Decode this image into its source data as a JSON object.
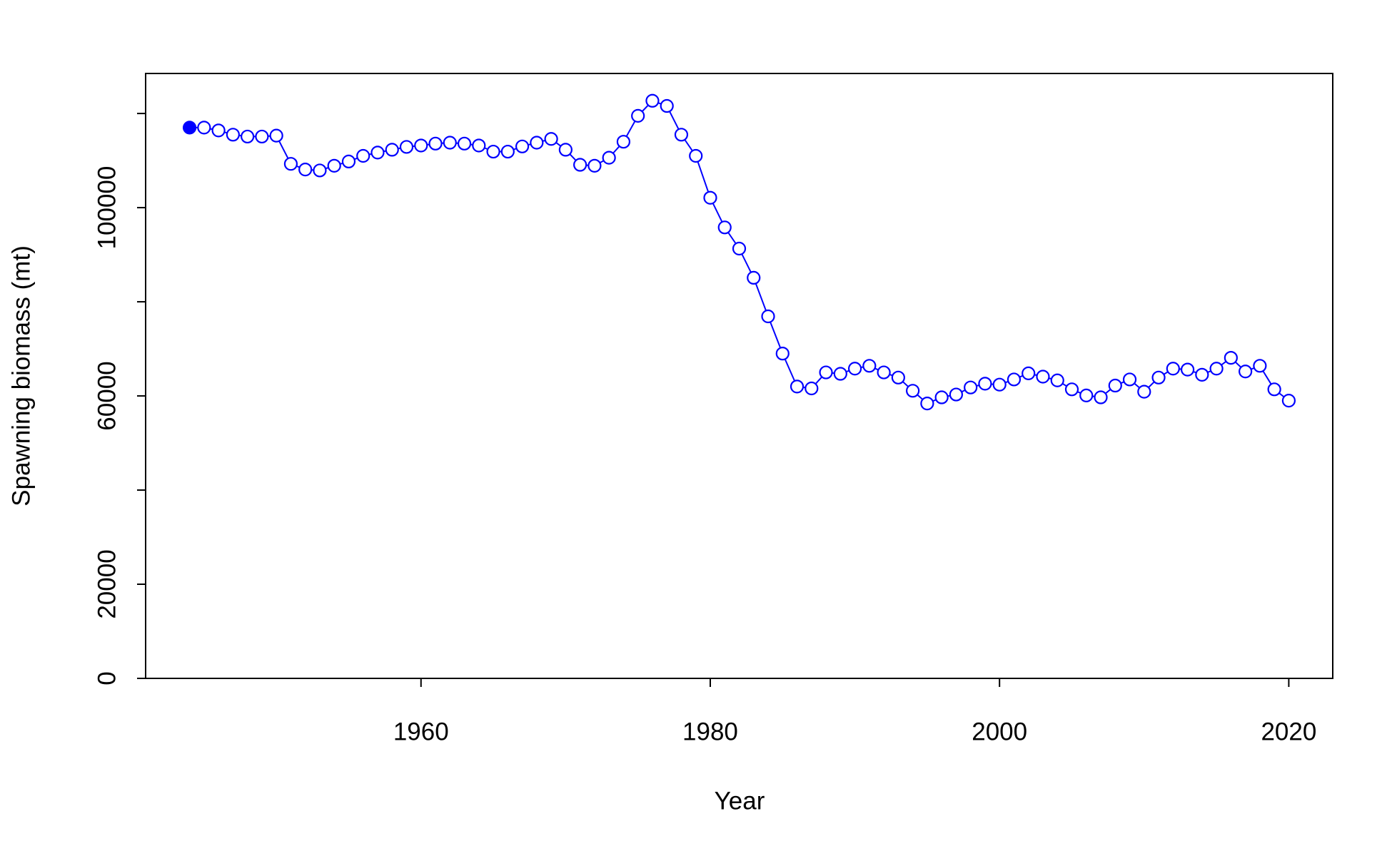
{
  "chart_data": {
    "type": "line",
    "xlabel": "Year",
    "ylabel": "Spawning biomass (mt)",
    "x": [
      1944,
      1945,
      1946,
      1947,
      1948,
      1949,
      1950,
      1951,
      1952,
      1953,
      1954,
      1955,
      1956,
      1957,
      1958,
      1959,
      1960,
      1961,
      1962,
      1963,
      1964,
      1965,
      1966,
      1967,
      1968,
      1969,
      1970,
      1971,
      1972,
      1973,
      1974,
      1975,
      1976,
      1977,
      1978,
      1979,
      1980,
      1981,
      1982,
      1983,
      1984,
      1985,
      1986,
      1987,
      1988,
      1989,
      1990,
      1991,
      1992,
      1993,
      1994,
      1995,
      1996,
      1997,
      1998,
      1999,
      2000,
      2001,
      2002,
      2003,
      2004,
      2005,
      2006,
      2007,
      2008,
      2009,
      2010,
      2011,
      2012,
      2013,
      2014,
      2015,
      2016,
      2017,
      2018,
      2019,
      2020
    ],
    "series": [
      {
        "color": "#0000ff",
        "first_point_filled": true,
        "values": [
          117000,
          117000,
          116400,
          115500,
          115100,
          115100,
          115300,
          109300,
          108100,
          107900,
          108900,
          109800,
          111000,
          111700,
          112300,
          112900,
          113200,
          113600,
          113800,
          113600,
          113200,
          111900,
          111900,
          113000,
          113800,
          114600,
          112300,
          109100,
          108900,
          110600,
          114000,
          119500,
          122700,
          121600,
          115500,
          111000,
          102100,
          95800,
          91300,
          85100,
          76900,
          69000,
          62000,
          61600,
          65000,
          64700,
          65800,
          66400,
          65000,
          63900,
          61100,
          58400,
          59700,
          60300,
          61800,
          62600,
          62400,
          63500,
          64800,
          64100,
          63300,
          61400,
          60100,
          59700,
          62200,
          63500,
          60900,
          63900,
          65800,
          65600,
          64500,
          65800,
          68100,
          65200,
          66400,
          61400,
          59000
        ]
      }
    ],
    "xlim": [
      1940.96,
      2023.04
    ],
    "xticks": [
      1960,
      1980,
      2000,
      2020
    ],
    "ylim": [
      0,
      128500
    ],
    "yticks": [
      0,
      20000,
      {
        "value": 40000,
        "label": null
      },
      60000,
      {
        "value": 80000,
        "label": null
      },
      100000,
      {
        "value": 120000,
        "label": null
      }
    ],
    "grid": false
  }
}
